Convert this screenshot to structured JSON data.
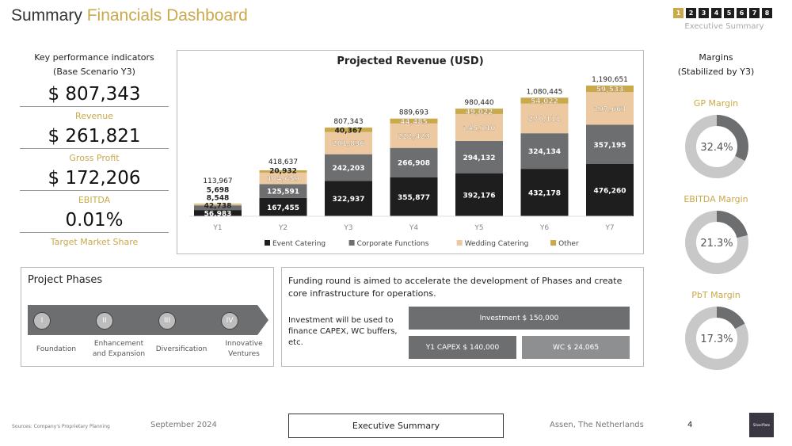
{
  "header": {
    "title_part1": "Summary",
    "title_part2": "Financials Dashboard",
    "nav_pages": [
      "1",
      "2",
      "3",
      "4",
      "5",
      "6",
      "7",
      "8"
    ],
    "active_page": "1",
    "section": "Executive Summary"
  },
  "kpi": {
    "heading1": "Key performance indicators",
    "heading2": "(Base Scenario Y3)",
    "items": [
      {
        "value": "$ 807,343",
        "label": "Revenue"
      },
      {
        "value": "$ 261,821",
        "label": "Gross Profit"
      },
      {
        "value": "$ 172,206",
        "label": "EBITDA"
      },
      {
        "value": "0.01%",
        "label": "Target Market Share"
      }
    ]
  },
  "margins": {
    "heading1": "Margins",
    "heading2": "(Stabilized by Y3)",
    "items": [
      {
        "label": "GP Margin",
        "value": "32.4%",
        "pct": 32.4
      },
      {
        "label": "EBITDA Margin",
        "value": "21.3%",
        "pct": 21.3
      },
      {
        "label": "PbT Margin",
        "value": "17.3%",
        "pct": 17.3
      }
    ]
  },
  "chart_data": {
    "type": "bar",
    "stacked": true,
    "title": "Projected Revenue (USD)",
    "categories": [
      "Y1",
      "Y2",
      "Y3",
      "Y4",
      "Y5",
      "Y6",
      "Y7"
    ],
    "series": [
      {
        "name": "Event Catering",
        "color": "#1e1e1e",
        "values": [
          56983,
          167455,
          322937,
          355877,
          392176,
          432178,
          476260
        ]
      },
      {
        "name": "Corporate Functions",
        "color": "#6d6e70",
        "values": [
          42738,
          125591,
          242203,
          266908,
          294132,
          324134,
          357195
        ]
      },
      {
        "name": "Wedding Catering",
        "color": "#ecc9a0",
        "values": [
          8548,
          104659,
          201836,
          222423,
          245110,
          270111,
          297663
        ]
      },
      {
        "name": "Other",
        "color": "#c9a94a",
        "values": [
          5698,
          20932,
          40367,
          44485,
          49022,
          54022,
          59533
        ]
      }
    ],
    "totals": [
      "113,967",
      "418,637",
      "807,343",
      "889,693",
      "980,440",
      "1,080,445",
      "1,190,651"
    ],
    "legend": "bottom",
    "grid": false
  },
  "phases": {
    "title": "Project Phases",
    "items": [
      {
        "num": "I",
        "label": "Foundation"
      },
      {
        "num": "II",
        "label": "Enhancement and Expansion"
      },
      {
        "num": "III",
        "label": "Diversification"
      },
      {
        "num": "IV",
        "label": "Innovative Ventures"
      }
    ]
  },
  "funding": {
    "text": "Funding round is aimed to accelerate the development of Phases and create core infrastructure for operations.",
    "note": "Investment will be used to finance CAPEX, WC buffers, etc.",
    "investment": "Investment $ 150,000",
    "capex": "Y1 CAPEX $ 140,000",
    "wc": "WC $ 24,065"
  },
  "footer": {
    "sources": "Sources: Company's Proprietary Planning",
    "date": "September 2024",
    "section": "Executive Summary",
    "location": "Assen, The Netherlands",
    "page": "4",
    "logo_text": "SilverPlate"
  }
}
